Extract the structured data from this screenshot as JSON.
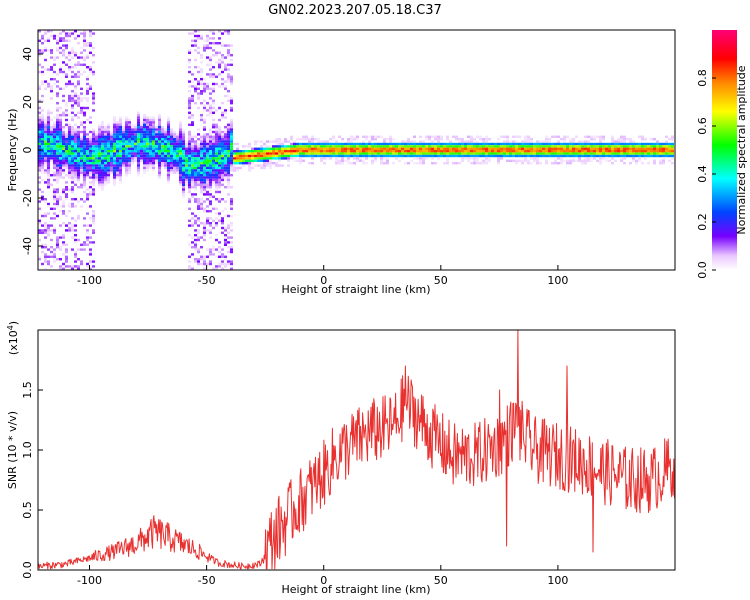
{
  "figure": {
    "title": "GN02.2023.207.05.18.C37"
  },
  "chart_data": [
    {
      "type": "heatmap",
      "xlabel": "Height of straight line (km)",
      "ylabel": "Frequency (Hz)",
      "xlim": [
        -122,
        150
      ],
      "ylim": [
        -50,
        50
      ],
      "xticks": [
        -100,
        -50,
        0,
        50,
        100
      ],
      "yticks": [
        -40,
        -20,
        0,
        20,
        40
      ],
      "colorbar": {
        "label": "Normalized spectral amplitude",
        "range": [
          0,
          1
        ],
        "ticks": [
          "0.0",
          "0.2",
          "0.4",
          "0.6",
          "0.8"
        ],
        "colormap": [
          "#ff0077",
          "#ff0000",
          "#ff8800",
          "#ffff00",
          "#00ff00",
          "#00ffff",
          "#0044ff",
          "#7700ff",
          "#ffffff"
        ]
      },
      "segments": [
        {
          "x_range": [
            -122,
            -38
          ],
          "center_hz": 0,
          "width_hz": 12,
          "peak_amplitude": 0.45,
          "note": "noisy"
        },
        {
          "x_range": [
            -38,
            150
          ],
          "center_hz": 0,
          "width_hz": 3,
          "peak_amplitude": 0.95,
          "note": "stable"
        }
      ]
    },
    {
      "type": "line",
      "xlabel": "Height of straight line (km)",
      "ylabel": "SNR (10 * v/v)",
      "scale_label": "(x10",
      "scale_exp": "4",
      "scale_close": ")",
      "xlim": [
        -122,
        150
      ],
      "ylim": [
        0,
        2.0
      ],
      "xticks": [
        -100,
        -50,
        0,
        50,
        100
      ],
      "yticks": [
        "0.0",
        "0.5",
        "1.0",
        "1.5"
      ],
      "color": "#e8302f",
      "series": [
        {
          "anchors": [
            [
              -122,
              0.03
            ],
            [
              -110,
              0.05
            ],
            [
              -100,
              0.1
            ],
            [
              -90,
              0.15
            ],
            [
              -80,
              0.22
            ],
            [
              -72,
              0.32
            ],
            [
              -65,
              0.26
            ],
            [
              -55,
              0.17
            ],
            [
              -45,
              0.06
            ],
            [
              -35,
              0.03
            ],
            [
              -27,
              0.05
            ],
            [
              -22,
              0.25
            ],
            [
              -15,
              0.45
            ],
            [
              -8,
              0.62
            ],
            [
              0,
              0.8
            ],
            [
              5,
              0.95
            ],
            [
              12,
              1.05
            ],
            [
              20,
              1.15
            ],
            [
              30,
              1.2
            ],
            [
              35,
              1.4
            ],
            [
              45,
              1.15
            ],
            [
              55,
              0.95
            ],
            [
              65,
              0.95
            ],
            [
              75,
              1.05
            ],
            [
              82,
              1.2
            ],
            [
              90,
              1.0
            ],
            [
              100,
              0.95
            ],
            [
              110,
              0.9
            ],
            [
              120,
              0.82
            ],
            [
              130,
              0.75
            ],
            [
              140,
              0.75
            ],
            [
              150,
              0.88
            ]
          ],
          "spikes": [
            [
              35,
              1.7
            ],
            [
              75,
              1.5
            ],
            [
              83,
              2.0
            ],
            [
              104,
              1.7
            ],
            [
              78,
              0.2
            ],
            [
              115,
              0.15
            ]
          ]
        }
      ]
    }
  ]
}
